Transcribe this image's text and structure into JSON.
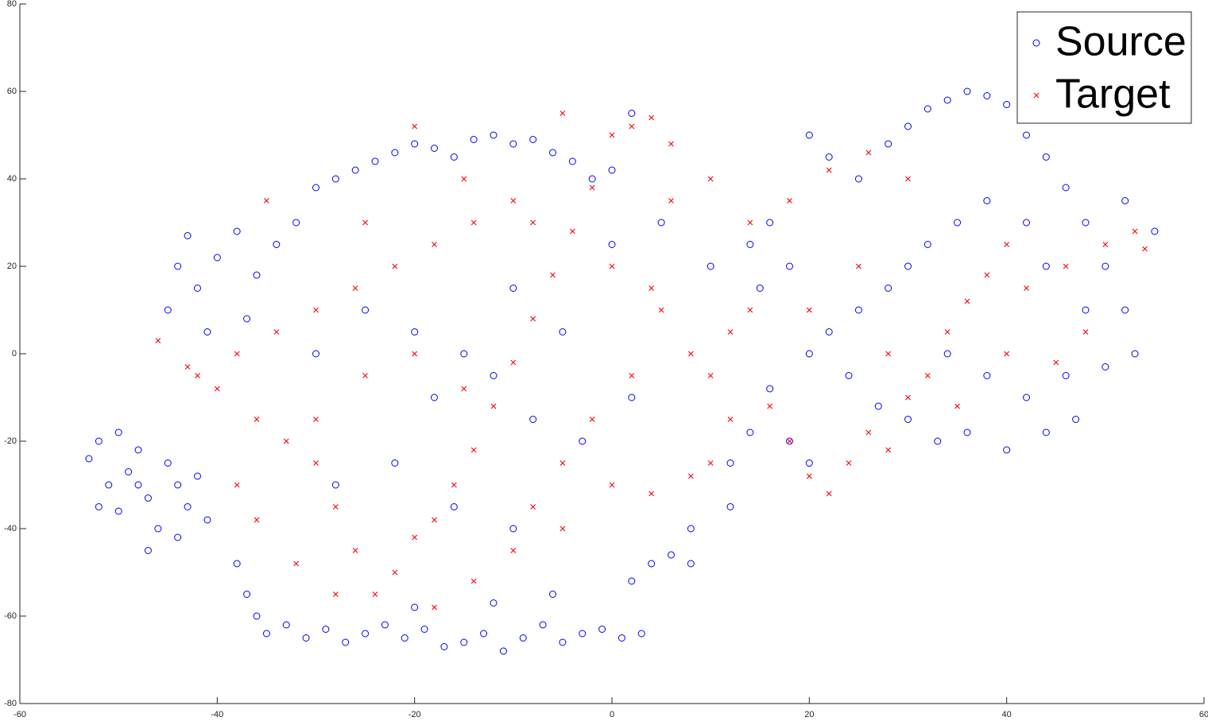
{
  "chart_data": {
    "type": "scatter",
    "xlim": [
      -60,
      60
    ],
    "xticks": [
      -60,
      -40,
      -20,
      0,
      20,
      40,
      60
    ],
    "ylim": [
      -80,
      80
    ],
    "yticks": [
      -80,
      -60,
      -40,
      -20,
      0,
      20,
      40,
      60,
      80
    ],
    "grid": false,
    "legend": "upper right",
    "series": [
      {
        "name": "Source",
        "color": "#0000ff",
        "marker": "o",
        "x": [
          -53,
          -52,
          -51,
          -50,
          -49,
          -48,
          -47,
          -46,
          -45,
          -44,
          -43,
          -42,
          -41,
          -50,
          -47,
          -44,
          -52,
          -48,
          -38,
          -37,
          -36,
          -35,
          -33,
          -31,
          -29,
          -27,
          -25,
          -23,
          -21,
          -19,
          -17,
          -15,
          -13,
          -11,
          -9,
          -7,
          -5,
          -3,
          -1,
          1,
          3,
          -20,
          -12,
          -6,
          2,
          4,
          6,
          8,
          -45,
          -44,
          -43,
          -42,
          -40,
          -38,
          -36,
          -41,
          -37,
          -34,
          -32,
          -30,
          -28,
          -26,
          -24,
          -22,
          -20,
          -18,
          -16,
          -14,
          -12,
          -10,
          -8,
          -6,
          -4,
          -2,
          0,
          2,
          -30,
          -25,
          -20,
          -18,
          -15,
          -12,
          -10,
          -8,
          -5,
          -3,
          0,
          2,
          5,
          8,
          10,
          12,
          14,
          16,
          18,
          -28,
          -22,
          -16,
          -10,
          20,
          22,
          25,
          28,
          30,
          32,
          34,
          36,
          38,
          40,
          42,
          44,
          46,
          48,
          50,
          52,
          53,
          50,
          46,
          48,
          44,
          42,
          38,
          35,
          32,
          30,
          28,
          25,
          22,
          20,
          24,
          27,
          30,
          33,
          36,
          40,
          44,
          47,
          42,
          38,
          34,
          16,
          14,
          12,
          20,
          18,
          15,
          55,
          52
        ],
        "y": [
          -24,
          -20,
          -30,
          -36,
          -27,
          -22,
          -33,
          -40,
          -25,
          -30,
          -35,
          -28,
          -38,
          -18,
          -45,
          -42,
          -35,
          -30,
          -48,
          -55,
          -60,
          -64,
          -62,
          -65,
          -63,
          -66,
          -64,
          -62,
          -65,
          -63,
          -67,
          -66,
          -64,
          -68,
          -65,
          -62,
          -66,
          -64,
          -63,
          -65,
          -64,
          -58,
          -57,
          -55,
          -52,
          -48,
          -46,
          -48,
          10,
          20,
          27,
          15,
          22,
          28,
          18,
          5,
          8,
          25,
          30,
          38,
          40,
          42,
          44,
          46,
          48,
          47,
          45,
          49,
          50,
          48,
          49,
          46,
          44,
          40,
          42,
          55,
          0,
          10,
          5,
          -10,
          0,
          -5,
          15,
          -15,
          5,
          -20,
          25,
          -10,
          30,
          -40,
          20,
          -35,
          25,
          30,
          -20,
          -30,
          -25,
          -35,
          -40,
          50,
          45,
          40,
          48,
          52,
          56,
          58,
          60,
          59,
          57,
          50,
          45,
          38,
          30,
          20,
          10,
          0,
          -3,
          -5,
          10,
          20,
          30,
          35,
          30,
          25,
          20,
          15,
          10,
          5,
          0,
          -5,
          -12,
          -15,
          -20,
          -18,
          -22,
          -18,
          -15,
          -10,
          -5,
          0,
          -8,
          -18,
          -25,
          -25,
          20,
          15,
          28,
          35
        ]
      },
      {
        "name": "Target",
        "color": "#ff0000",
        "marker": "x",
        "x": [
          -46,
          -43,
          -40,
          -36,
          -33,
          -30,
          -28,
          -26,
          -24,
          -22,
          -20,
          -18,
          -16,
          -14,
          -12,
          -10,
          -8,
          -6,
          -4,
          -2,
          0,
          2,
          4,
          6,
          -5,
          -10,
          -14,
          -18,
          -22,
          -26,
          -30,
          -34,
          -38,
          -42,
          -35,
          -25,
          -20,
          -15,
          -8,
          0,
          5,
          8,
          10,
          12,
          14,
          16,
          18,
          20,
          22,
          24,
          26,
          28,
          30,
          32,
          34,
          36,
          38,
          40,
          42,
          46,
          50,
          53,
          54,
          48,
          45,
          40,
          35,
          30,
          26,
          22,
          18,
          14,
          10,
          6,
          4,
          2,
          -2,
          -5,
          -8,
          -10,
          -14,
          -18,
          -28,
          -32,
          -36,
          -38,
          -30,
          -25,
          -20,
          -15,
          -5,
          0,
          4,
          8,
          12,
          20,
          25,
          28,
          10
        ],
        "y": [
          3,
          -3,
          -8,
          -15,
          -20,
          -25,
          -35,
          -45,
          -55,
          -50,
          -42,
          -38,
          -30,
          -22,
          -12,
          -2,
          8,
          18,
          28,
          38,
          50,
          52,
          54,
          48,
          55,
          35,
          30,
          25,
          20,
          15,
          10,
          5,
          0,
          -5,
          35,
          30,
          52,
          40,
          30,
          20,
          10,
          0,
          -5,
          5,
          10,
          -12,
          -20,
          -28,
          -32,
          -25,
          -18,
          -22,
          -10,
          -5,
          5,
          12,
          18,
          25,
          15,
          20,
          25,
          28,
          24,
          5,
          -2,
          0,
          -12,
          40,
          46,
          42,
          35,
          30,
          40,
          35,
          15,
          -5,
          -15,
          -25,
          -35,
          -45,
          -52,
          -58,
          -55,
          -48,
          -38,
          -30,
          -15,
          -5,
          0,
          -8,
          -40,
          -30,
          -32,
          -28,
          -15,
          10,
          20,
          0,
          -25
        ]
      }
    ]
  }
}
